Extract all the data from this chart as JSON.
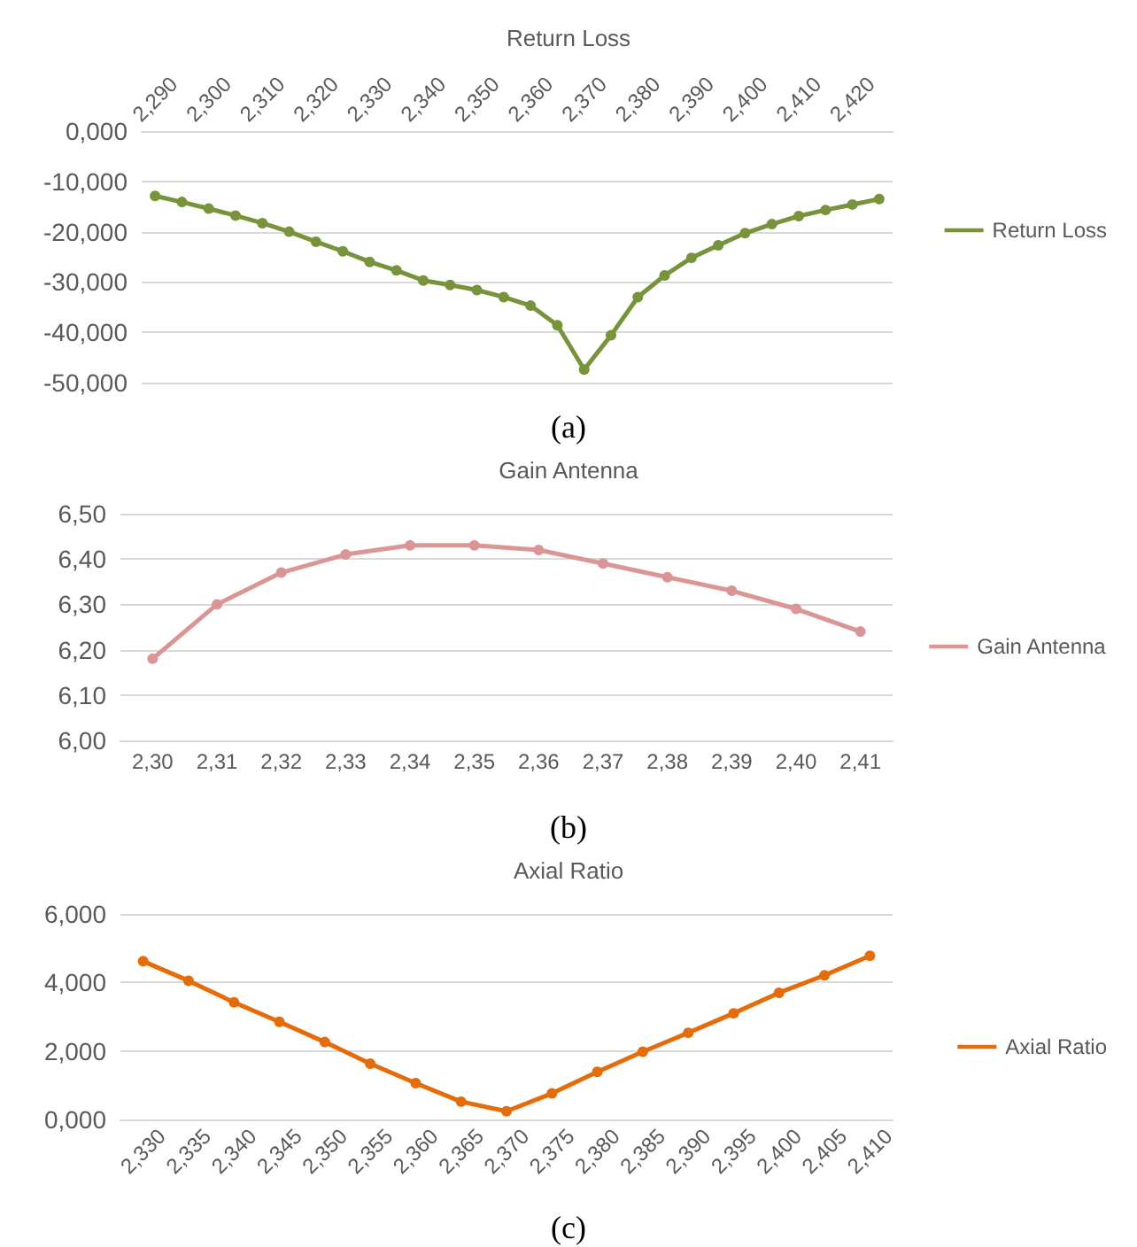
{
  "chart_data": [
    {
      "type": "line",
      "title": "Return Loss",
      "annotations": [
        "(a)"
      ],
      "categories": [
        "2,290",
        null,
        "2,300",
        null,
        "2,310",
        null,
        "2,320",
        null,
        "2,330",
        null,
        "2,340",
        null,
        "2,350",
        null,
        "2,360",
        null,
        "2,370",
        null,
        "2,380",
        null,
        "2,390",
        null,
        "2,400",
        null,
        "2,410",
        null,
        "2,420",
        null
      ],
      "series": [
        {
          "name": "Return Loss",
          "color": "#77933c",
          "values": [
            -12.9,
            -14.1,
            -15.4,
            -16.8,
            -18.3,
            -20.0,
            -22.0,
            -23.9,
            -26.0,
            -27.7,
            -29.7,
            -30.6,
            -31.6,
            -33.0,
            -34.7,
            -38.6,
            -47.4,
            -40.6,
            -33.0,
            -28.7,
            -25.2,
            -22.7,
            -20.3,
            -18.5,
            -16.9,
            -15.7,
            -14.6,
            -13.5
          ]
        }
      ],
      "ylim": [
        -50,
        0
      ],
      "yticks": [
        {
          "value": -50,
          "label": "-50,000"
        },
        {
          "value": -40,
          "label": "-40,000"
        },
        {
          "value": -30,
          "label": "-30,000"
        },
        {
          "value": -20,
          "label": "-20,000"
        },
        {
          "value": -10,
          "label": "-10,000"
        },
        {
          "value": 0,
          "label": "0,000"
        }
      ],
      "grid": "y",
      "legend": "right",
      "marker": "circle",
      "line_style": "solid"
    },
    {
      "type": "line",
      "title": "Gain Antenna",
      "annotations": [
        "(b)"
      ],
      "categories": [
        "2,30",
        "2,31",
        "2,32",
        "2,33",
        "2,34",
        "2,35",
        "2,36",
        "2,37",
        "2,38",
        "2,39",
        "2,40",
        "2,41"
      ],
      "series": [
        {
          "name": "Gain Antenna",
          "color": "#d99694",
          "values": [
            6.18,
            6.3,
            6.37,
            6.41,
            6.43,
            6.43,
            6.42,
            6.39,
            6.36,
            6.33,
            6.29,
            6.24
          ]
        }
      ],
      "ylim": [
        6.0,
        6.5
      ],
      "yticks": [
        {
          "value": 6.0,
          "label": "6,00"
        },
        {
          "value": 6.1,
          "label": "6,10"
        },
        {
          "value": 6.2,
          "label": "6,20"
        },
        {
          "value": 6.3,
          "label": "6,30"
        },
        {
          "value": 6.4,
          "label": "6,40"
        },
        {
          "value": 6.5,
          "label": "6,50"
        }
      ],
      "grid": "y",
      "legend": "right",
      "marker": "circle",
      "line_style": "solid"
    },
    {
      "type": "line",
      "title": "Axial Ratio",
      "annotations": [
        "(c)"
      ],
      "categories": [
        "2,330",
        "2,335",
        "2,340",
        "2,345",
        "2,350",
        "2,355",
        "2,360",
        "2,365",
        "2,370",
        "2,375",
        "2,380",
        "2,385",
        "2,390",
        "2,395",
        "2,400",
        "2,405",
        "2,410"
      ],
      "series": [
        {
          "name": "Axial Ratio",
          "color": "#e46c0a",
          "values": [
            4.62,
            4.05,
            3.42,
            2.85,
            2.26,
            1.63,
            1.06,
            0.52,
            0.24,
            0.76,
            1.39,
            1.98,
            2.53,
            3.1,
            3.7,
            4.21,
            4.78
          ]
        }
      ],
      "ylim": [
        0,
        6
      ],
      "yticks": [
        {
          "value": 0,
          "label": "0,000"
        },
        {
          "value": 2,
          "label": "2,000"
        },
        {
          "value": 4,
          "label": "4,000"
        },
        {
          "value": 6,
          "label": "6,000"
        }
      ],
      "grid": "y",
      "legend": "right",
      "marker": "circle",
      "line_style": "solid"
    }
  ]
}
